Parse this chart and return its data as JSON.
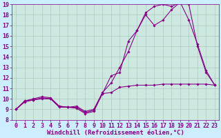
{
  "background_color": "#cceeff",
  "plot_bg_color": "#cce8e0",
  "grid_color": "#aaccbb",
  "line_color": "#880088",
  "xlim": [
    -0.5,
    23.5
  ],
  "ylim": [
    8,
    19
  ],
  "xlabel": "Windchill (Refroidissement éolien,°C)",
  "xlabel_fontsize": 6.5,
  "xticks": [
    0,
    1,
    2,
    3,
    4,
    5,
    6,
    7,
    8,
    9,
    10,
    11,
    12,
    13,
    14,
    15,
    16,
    17,
    18,
    19,
    20,
    21,
    22,
    23
  ],
  "yticks": [
    8,
    9,
    10,
    11,
    12,
    13,
    14,
    15,
    16,
    17,
    18,
    19
  ],
  "tick_fontsize": 6,
  "series": [
    {
      "x": [
        0,
        1,
        2,
        3,
        4,
        5,
        6,
        7,
        8,
        9,
        10,
        11,
        12,
        13,
        14,
        15,
        16,
        17,
        18,
        19,
        20,
        21,
        22,
        23
      ],
      "y": [
        9,
        9.8,
        9.9,
        10.1,
        10.0,
        9.3,
        9.2,
        9.2,
        8.7,
        8.9,
        10.5,
        12.2,
        12.5,
        15.5,
        16.5,
        18.0,
        17.0,
        17.5,
        18.5,
        19.2,
        17.5,
        15.2,
        12.7,
        11.3
      ]
    },
    {
      "x": [
        0,
        1,
        2,
        3,
        4,
        5,
        6,
        7,
        8,
        9,
        10,
        11,
        12,
        13,
        14,
        15,
        16,
        17,
        18,
        19,
        20,
        21,
        22,
        23
      ],
      "y": [
        9,
        9.8,
        10.0,
        10.2,
        10.1,
        9.3,
        9.2,
        9.3,
        8.8,
        9.0,
        10.6,
        11.5,
        13.0,
        14.5,
        16.5,
        18.2,
        18.8,
        19.0,
        18.8,
        19.2,
        19.0,
        15.0,
        12.5,
        11.3
      ]
    },
    {
      "x": [
        0,
        1,
        2,
        3,
        4,
        5,
        6,
        7,
        8,
        9,
        10,
        11,
        12,
        13,
        14,
        15,
        16,
        17,
        18,
        19,
        20,
        21,
        22,
        23
      ],
      "y": [
        9,
        9.7,
        9.9,
        10.0,
        10.0,
        9.2,
        9.2,
        9.1,
        8.6,
        8.8,
        10.5,
        10.6,
        11.1,
        11.2,
        11.3,
        11.3,
        11.3,
        11.4,
        11.4,
        11.4,
        11.4,
        11.4,
        11.4,
        11.3
      ]
    }
  ]
}
